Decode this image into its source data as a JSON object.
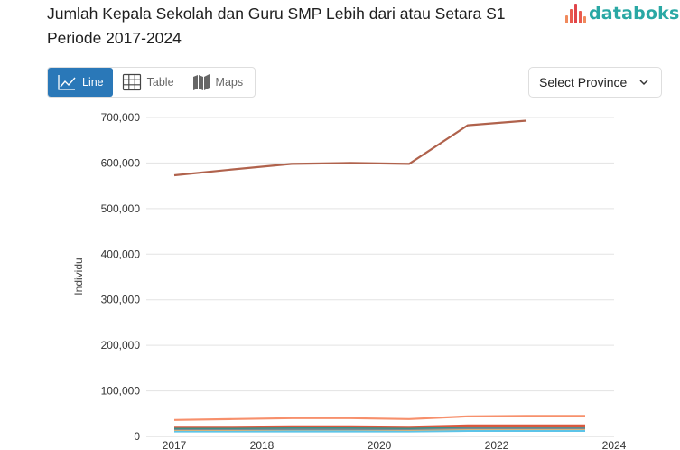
{
  "header": {
    "title": "Jumlah Kepala Sekolah dan Guru SMP Lebih dari atau Setara S1 Periode 2017-2024",
    "logo_text": "databoks",
    "logo_icon": "bars-logo-icon"
  },
  "view_tabs": [
    {
      "label": "Line",
      "icon": "line-chart-icon",
      "active": true
    },
    {
      "label": "Table",
      "icon": "table-grid-icon",
      "active": false
    },
    {
      "label": "Maps",
      "icon": "map-icon",
      "active": false
    }
  ],
  "province_select": {
    "label": "Select Province",
    "icon": "chevron-down-icon"
  },
  "colors": {
    "accent": "#2a78b8",
    "logo": "#2aa8a4",
    "grid": "#e3e3e3"
  },
  "chart_data": {
    "type": "line",
    "title": "Jumlah Kepala Sekolah dan Guru SMP Lebih dari atau Setara S1 Periode 2017-2024",
    "xlabel": "",
    "ylabel": "Individu",
    "ylim": [
      0,
      700000
    ],
    "y_ticks": [
      "0",
      "100,000",
      "200,000",
      "300,000",
      "400,000",
      "500,000",
      "600,000",
      "700,000"
    ],
    "x_ticks": [
      "2017",
      "2018",
      "2020",
      "2022",
      "2024"
    ],
    "grid": true,
    "legend": "none",
    "x": [
      2017,
      2018,
      2019,
      2020,
      2021,
      2022,
      2023,
      2024
    ],
    "series": [
      {
        "name": "Series 1 (brown)",
        "color": "#b0624c",
        "values": [
          573000,
          586000,
          598000,
          600000,
          598000,
          683000,
          693000,
          null
        ]
      },
      {
        "name": "Series 2 (salmon)",
        "color": "#f7906c",
        "values": [
          36000,
          38000,
          40000,
          40000,
          38000,
          44000,
          45000,
          45000
        ]
      },
      {
        "name": "Series 3 (red)",
        "color": "#d9583e",
        "values": [
          21000,
          21000,
          22000,
          22000,
          21000,
          24000,
          24000,
          24000
        ]
      },
      {
        "name": "Series 4 (teal)",
        "color": "#3d8f86",
        "values": [
          18000,
          18000,
          19000,
          19000,
          18000,
          21000,
          21000,
          21000
        ]
      },
      {
        "name": "Series 5 (gray)",
        "color": "#7b8a93",
        "values": [
          16000,
          16000,
          16000,
          16000,
          16000,
          18000,
          18000,
          18000
        ]
      },
      {
        "name": "Series 6 (tan)",
        "color": "#d8b27a",
        "values": [
          14000,
          14000,
          15000,
          15000,
          14000,
          16000,
          16000,
          16000
        ]
      },
      {
        "name": "Series 7 (light blue)",
        "color": "#5cc4e8",
        "values": [
          11000,
          11000,
          11000,
          11000,
          11000,
          12000,
          12000,
          12000
        ]
      }
    ]
  }
}
